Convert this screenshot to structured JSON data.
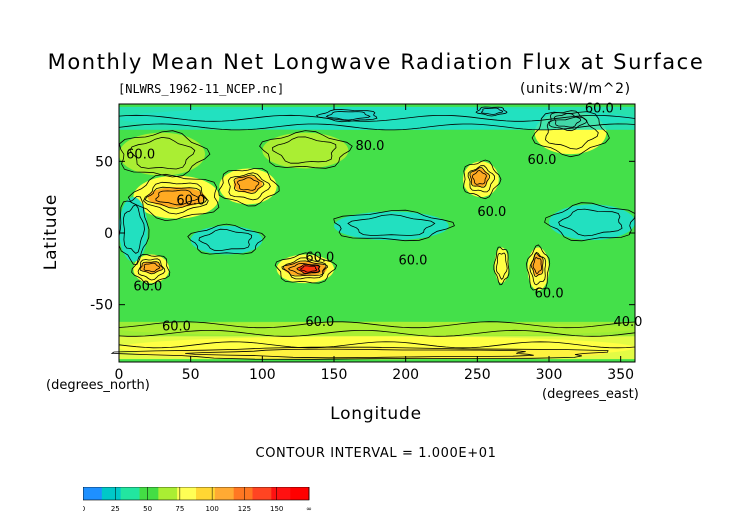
{
  "chart_data": {
    "type": "heatmap",
    "title": "Monthly Mean Net Longwave Radiation Flux at Surface",
    "file_label": "[NLWRS_1962-11_NCEP.nc]",
    "units_label": "(units:W/m^2)",
    "xlabel": "Longitude",
    "ylabel": "Latitude",
    "x_units_label": "(degrees_north)",
    "y_units_label": "(degrees_east)",
    "xlim": [
      0,
      360
    ],
    "ylim": [
      -90,
      90
    ],
    "x_ticks": [
      0,
      50,
      100,
      150,
      200,
      250,
      300,
      350
    ],
    "y_ticks": [
      50,
      0,
      -50
    ],
    "contour_interval_text": "CONTOUR INTERVAL = 1.000E+01",
    "colorbar": {
      "levels": [
        0,
        25,
        50,
        75,
        100,
        125,
        150,
        "∞"
      ],
      "colors": [
        "#1e90ff",
        "#00c8c8",
        "#22e6a0",
        "#44dd44",
        "#aaee33",
        "#ffff55",
        "#ffd733",
        "#ffaa33",
        "#ff7722",
        "#ff4422",
        "#ff1111",
        "#ff0000"
      ]
    },
    "field_colors": {
      "lt_25": "#33aaff",
      "c25_50": "#22e0c0",
      "c50_75": "#44e04a",
      "c75_100": "#aaee33",
      "c100_125": "#ffff44",
      "c125_150": "#ffaa22",
      "gt_150": "#ff3311",
      "contour": "#000000"
    },
    "contour_labels": [
      "60.0",
      "60.0",
      "60.0",
      "60.0",
      "60.0",
      "60.0",
      "60.0",
      "60.0",
      "40.0",
      "60.0",
      "60.0",
      "60.0",
      "80.0"
    ],
    "field_regions": [
      {
        "name": "background",
        "band": "c50_75",
        "lon": [
          0,
          360
        ],
        "lat": [
          -90,
          90
        ]
      },
      {
        "name": "arctic-strip",
        "band": "c25_50",
        "lon": [
          0,
          360
        ],
        "lat": [
          72,
          88
        ]
      },
      {
        "name": "south-ocean-band",
        "band": "c75_100",
        "lon": [
          0,
          360
        ],
        "lat": [
          -72,
          -62
        ]
      },
      {
        "name": "antarctic-band",
        "band": "c100_125",
        "lon": [
          0,
          360
        ],
        "lat": [
          -88,
          -72
        ]
      },
      {
        "name": "antarctic-orange",
        "band": "c125_150",
        "lon": [
          10,
          340
        ],
        "lat": [
          -88,
          -80
        ]
      },
      {
        "name": "n-africa-desert",
        "band": "c100_125",
        "lon": [
          10,
          70
        ],
        "lat": [
          10,
          40
        ]
      },
      {
        "name": "sahara-core",
        "band": "c125_150",
        "lon": [
          20,
          60
        ],
        "lat": [
          18,
          32
        ]
      },
      {
        "name": "asia-desert",
        "band": "c100_125",
        "lon": [
          70,
          110
        ],
        "lat": [
          20,
          45
        ]
      },
      {
        "name": "tibet-core",
        "band": "c125_150",
        "lon": [
          80,
          100
        ],
        "lat": [
          28,
          40
        ]
      },
      {
        "name": "australia",
        "band": "c100_125",
        "lon": [
          110,
          150
        ],
        "lat": [
          -35,
          -15
        ]
      },
      {
        "name": "australia-core",
        "band": "c125_150",
        "lon": [
          115,
          145
        ],
        "lat": [
          -30,
          -20
        ]
      },
      {
        "name": "australia-hot",
        "band": "gt_150",
        "lon": [
          125,
          140
        ],
        "lat": [
          -28,
          -22
        ]
      },
      {
        "name": "s-africa",
        "band": "c100_125",
        "lon": [
          10,
          35
        ],
        "lat": [
          -35,
          -15
        ]
      },
      {
        "name": "s-africa-core",
        "band": "c125_150",
        "lon": [
          15,
          30
        ],
        "lat": [
          -28,
          -20
        ]
      },
      {
        "name": "n-america-west",
        "band": "c100_125",
        "lon": [
          240,
          265
        ],
        "lat": [
          25,
          50
        ]
      },
      {
        "name": "n-america-core",
        "band": "c125_150",
        "lon": [
          245,
          258
        ],
        "lat": [
          32,
          45
        ]
      },
      {
        "name": "s-america",
        "band": "c100_125",
        "lon": [
          285,
          300
        ],
        "lat": [
          -40,
          -10
        ]
      },
      {
        "name": "s-america-core",
        "band": "c125_150",
        "lon": [
          288,
          296
        ],
        "lat": [
          -30,
          -15
        ]
      },
      {
        "name": "s-america-west",
        "band": "c100_125",
        "lon": [
          262,
          272
        ],
        "lat": [
          -35,
          -10
        ]
      },
      {
        "name": "greenland-area",
        "band": "c100_125",
        "lon": [
          290,
          340
        ],
        "lat": [
          55,
          85
        ]
      },
      {
        "name": "greenland-core",
        "band": "c125_150",
        "lon": [
          300,
          325
        ],
        "lat": [
          72,
          85
        ]
      },
      {
        "name": "pacific-cool-1",
        "band": "c25_50",
        "lon": [
          150,
          230
        ],
        "lat": [
          -5,
          15
        ]
      },
      {
        "name": "indian-cool",
        "band": "c25_50",
        "lon": [
          50,
          100
        ],
        "lat": [
          -15,
          5
        ]
      },
      {
        "name": "atlantic-cool",
        "band": "c25_50",
        "lon": [
          300,
          360
        ],
        "lat": [
          -5,
          20
        ]
      },
      {
        "name": "arctic-blue",
        "band": "lt_25",
        "lon": [
          140,
          180
        ],
        "lat": [
          78,
          86
        ]
      },
      {
        "name": "arctic-blue-2",
        "band": "lt_25",
        "lon": [
          250,
          270
        ],
        "lat": [
          82,
          88
        ]
      },
      {
        "name": "west-coast-cool",
        "band": "c25_50",
        "lon": [
          0,
          20
        ],
        "lat": [
          -20,
          25
        ]
      },
      {
        "name": "europe",
        "band": "c75_100",
        "lon": [
          0,
          60
        ],
        "lat": [
          40,
          70
        ]
      },
      {
        "name": "siberia",
        "band": "c75_100",
        "lon": [
          100,
          160
        ],
        "lat": [
          45,
          70
        ]
      }
    ]
  }
}
